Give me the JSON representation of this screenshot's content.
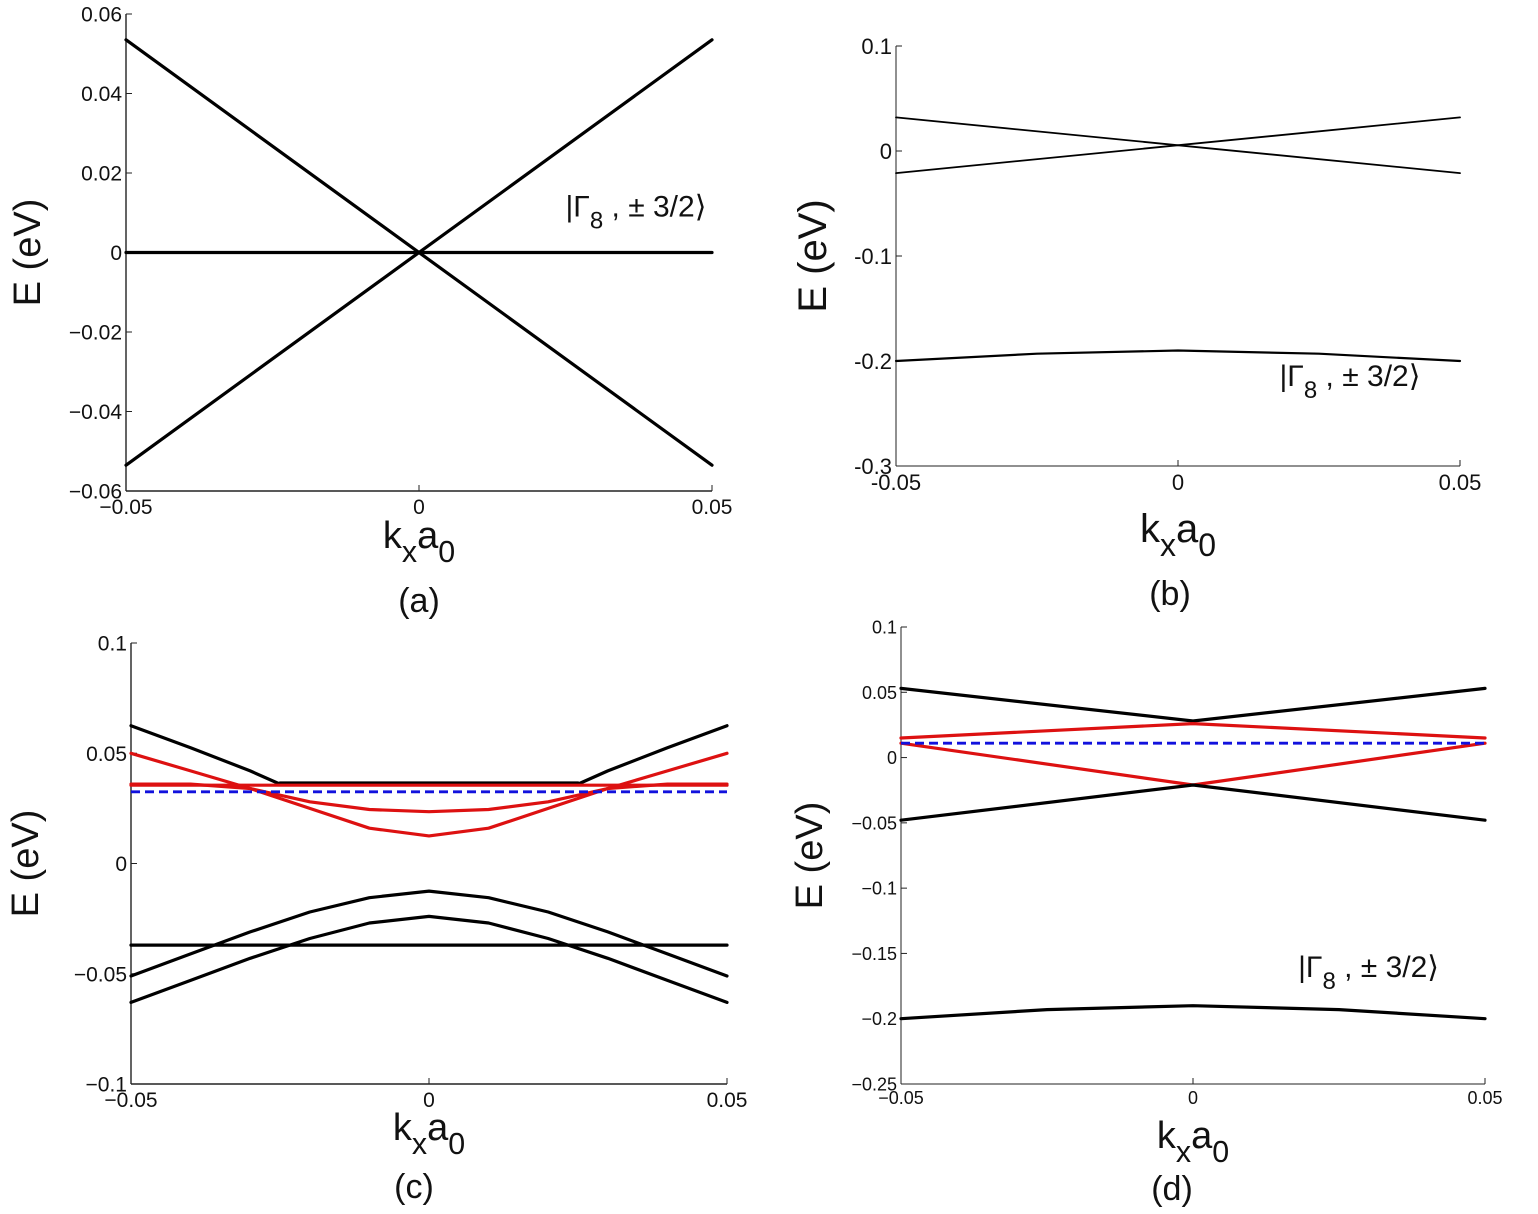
{
  "chart_data": [
    {
      "id": "a",
      "type": "line",
      "caption": "(a)",
      "xlabel": "k",
      "xlabel_sub1": "x",
      "xlabel_main2": "a",
      "xlabel_sub2": "0",
      "ylabel": "E (eV)",
      "xlim": [
        -0.05,
        0.05
      ],
      "ylim": [
        -0.06,
        0.06
      ],
      "xticks": [
        -0.05,
        0,
        0.05
      ],
      "xtick_labels": [
        "−0.05",
        "0",
        "0.05"
      ],
      "yticks": [
        0.06,
        0.04,
        0.02,
        0,
        -0.02,
        -0.04,
        -0.06
      ],
      "ytick_labels": [
        "0.06",
        "0.04",
        "0.02",
        "0",
        "−0.02",
        "−0.04",
        "−0.06"
      ],
      "annotation": {
        "text_pre": "|Γ",
        "text_sub": "8",
        "text_post": " , ± 3/2⟩",
        "x": 0.025,
        "y": 0.009
      },
      "series": [
        {
          "name": "band1",
          "color": "#000000",
          "style": "solid",
          "x": [
            -0.05,
            0.05
          ],
          "y": [
            0.0535,
            -0.0535
          ]
        },
        {
          "name": "band2",
          "color": "#000000",
          "style": "solid",
          "x": [
            -0.05,
            0.05
          ],
          "y": [
            -0.0535,
            0.0535
          ]
        },
        {
          "name": "Γ 8, ±3/2",
          "color": "#000000",
          "style": "solid",
          "x": [
            -0.05,
            0.05
          ],
          "y": [
            0,
            0
          ]
        }
      ]
    },
    {
      "id": "b",
      "type": "line",
      "caption": "(b)",
      "xlabel": "k",
      "xlabel_sub1": "x",
      "xlabel_main2": "a",
      "xlabel_sub2": "0",
      "ylabel": "E (eV)",
      "xlim": [
        -0.05,
        0.05
      ],
      "ylim": [
        -0.3,
        0.1
      ],
      "xticks": [
        -0.05,
        0,
        0.05
      ],
      "xtick_labels": [
        "-0.05",
        "0",
        "0.05"
      ],
      "yticks": [
        0.1,
        0,
        -0.1,
        -0.2,
        -0.3
      ],
      "ytick_labels": [
        "0.1",
        "0",
        "-0.1",
        "-0.2",
        "-0.3"
      ],
      "annotation": {
        "text_pre": "|Γ",
        "text_sub": "8",
        "text_post": " , ± 3/2⟩",
        "x": 0.018,
        "y": -0.224
      },
      "series": [
        {
          "name": "band1",
          "color": "#000000",
          "style": "thin",
          "x": [
            -0.05,
            0.05
          ],
          "y": [
            0.032,
            -0.021
          ]
        },
        {
          "name": "band2",
          "color": "#000000",
          "style": "thin",
          "x": [
            -0.05,
            0.05
          ],
          "y": [
            -0.021,
            0.032
          ]
        },
        {
          "name": "Γ 8, ±3/2",
          "color": "#000000",
          "style": "solid",
          "x": [
            -0.05,
            -0.025,
            0,
            0.025,
            0.05
          ],
          "y": [
            -0.2,
            -0.193,
            -0.19,
            -0.193,
            -0.2
          ]
        }
      ]
    },
    {
      "id": "c",
      "type": "line",
      "caption": "(c)",
      "xlabel": "k",
      "xlabel_sub1": "x",
      "xlabel_main2": "a",
      "xlabel_sub2": "0",
      "ylabel": "E (eV)",
      "xlim": [
        -0.05,
        0.05
      ],
      "ylim": [
        -0.1,
        0.1
      ],
      "xticks": [
        -0.05,
        0,
        0.05
      ],
      "xtick_labels": [
        "−0.05",
        "0",
        "0.05"
      ],
      "yticks": [
        0.1,
        0.05,
        0,
        -0.05,
        -0.1
      ],
      "ytick_labels": [
        "0.1",
        "0.05",
        "0",
        "−0.05",
        "−0.1"
      ],
      "annotation": null,
      "series": [
        {
          "name": "cond-1",
          "color": "#000000",
          "style": "solid",
          "x": [
            -0.05,
            -0.04,
            -0.03,
            -0.025,
            0.025,
            0.03,
            0.04,
            0.05
          ],
          "y": [
            0.0625,
            0.0525,
            0.042,
            0.036,
            0.036,
            0.042,
            0.0525,
            0.0625
          ]
        },
        {
          "name": "cond-flat",
          "color": "#000000",
          "style": "solid",
          "x": [
            -0.025,
            0.025
          ],
          "y": [
            0.0365,
            0.0365
          ]
        },
        {
          "name": "red-1",
          "color": "#dd1111",
          "style": "solid",
          "x": [
            -0.05,
            -0.04,
            -0.03,
            -0.02,
            -0.01,
            0,
            0.01,
            0.02,
            0.03,
            0.04,
            0.05
          ],
          "y": [
            0.05,
            0.042,
            0.034,
            0.028,
            0.0245,
            0.0235,
            0.0245,
            0.028,
            0.034,
            0.042,
            0.05
          ]
        },
        {
          "name": "red-2",
          "color": "#dd1111",
          "style": "solid",
          "x": [
            -0.05,
            -0.04,
            -0.03,
            -0.02,
            -0.01,
            0,
            0.01,
            0.02,
            0.03,
            0.04,
            0.05
          ],
          "y": [
            0.036,
            0.036,
            0.034,
            0.025,
            0.016,
            0.0125,
            0.016,
            0.025,
            0.034,
            0.036,
            0.036
          ]
        },
        {
          "name": "red-flat",
          "color": "#dd1111",
          "style": "solid",
          "x": [
            -0.05,
            0.05
          ],
          "y": [
            0.0355,
            0.0355
          ]
        },
        {
          "name": "fermi",
          "color": "#1111dd",
          "style": "dashed",
          "x": [
            -0.05,
            0.05
          ],
          "y": [
            0.0325,
            0.0325
          ]
        },
        {
          "name": "val-1",
          "color": "#000000",
          "style": "solid",
          "x": [
            -0.05,
            -0.04,
            -0.03,
            -0.02,
            -0.01,
            0,
            0.01,
            0.02,
            0.03,
            0.04,
            0.05
          ],
          "y": [
            -0.051,
            -0.041,
            -0.031,
            -0.022,
            -0.0155,
            -0.0125,
            -0.0155,
            -0.022,
            -0.031,
            -0.041,
            -0.051
          ]
        },
        {
          "name": "val-2",
          "color": "#000000",
          "style": "solid",
          "x": [
            -0.05,
            -0.04,
            -0.03,
            -0.02,
            -0.01,
            0,
            0.01,
            0.02,
            0.03,
            0.04,
            0.05
          ],
          "y": [
            -0.063,
            -0.053,
            -0.043,
            -0.034,
            -0.027,
            -0.024,
            -0.027,
            -0.034,
            -0.043,
            -0.053,
            -0.063
          ]
        },
        {
          "name": "val-flat",
          "color": "#000000",
          "style": "solid",
          "x": [
            -0.05,
            0.05
          ],
          "y": [
            -0.037,
            -0.037
          ]
        }
      ]
    },
    {
      "id": "d",
      "type": "line",
      "caption": "(d)",
      "xlabel": "k",
      "xlabel_sub1": "x",
      "xlabel_main2": "a",
      "xlabel_sub2": "0",
      "ylabel": "E (eV)",
      "xlim": [
        -0.05,
        0.05
      ],
      "ylim": [
        -0.25,
        0.1
      ],
      "xticks": [
        -0.05,
        0,
        0.05
      ],
      "xtick_labels": [
        "−0.05",
        "0",
        "0.05"
      ],
      "yticks": [
        0.1,
        0.05,
        0,
        -0.05,
        -0.1,
        -0.15,
        -0.2,
        -0.25
      ],
      "ytick_labels": [
        "0.1",
        "0.05",
        "0",
        "−0.05",
        "−0.1",
        "−0.15",
        "−0.2",
        "−0.25"
      ],
      "annotation": {
        "text_pre": "|Γ",
        "text_sub": "8",
        "text_post": " , ± 3/2⟩",
        "x": 0.018,
        "y": -0.168
      },
      "series": [
        {
          "name": "cond-1",
          "color": "#000000",
          "style": "solid",
          "x": [
            -0.05,
            0,
            0.05
          ],
          "y": [
            0.053,
            0.028,
            0.053
          ]
        },
        {
          "name": "red-1",
          "color": "#dd1111",
          "style": "solid",
          "x": [
            -0.05,
            0,
            0.05
          ],
          "y": [
            0.015,
            0.026,
            0.015
          ]
        },
        {
          "name": "red-2",
          "color": "#dd1111",
          "style": "solid",
          "x": [
            -0.05,
            0,
            0.05
          ],
          "y": [
            0.011,
            -0.021,
            0.011
          ]
        },
        {
          "name": "fermi",
          "color": "#1111dd",
          "style": "dashed",
          "x": [
            -0.05,
            0.05
          ],
          "y": [
            0.011,
            0.011
          ]
        },
        {
          "name": "val-1",
          "color": "#000000",
          "style": "solid",
          "x": [
            -0.05,
            0,
            0.05
          ],
          "y": [
            -0.048,
            -0.021,
            -0.048
          ]
        },
        {
          "name": "Γ 8, ±3/2",
          "color": "#000000",
          "style": "solid",
          "x": [
            -0.05,
            -0.025,
            0,
            0.025,
            0.05
          ],
          "y": [
            -0.2,
            -0.193,
            -0.19,
            -0.193,
            -0.2
          ]
        }
      ]
    }
  ]
}
